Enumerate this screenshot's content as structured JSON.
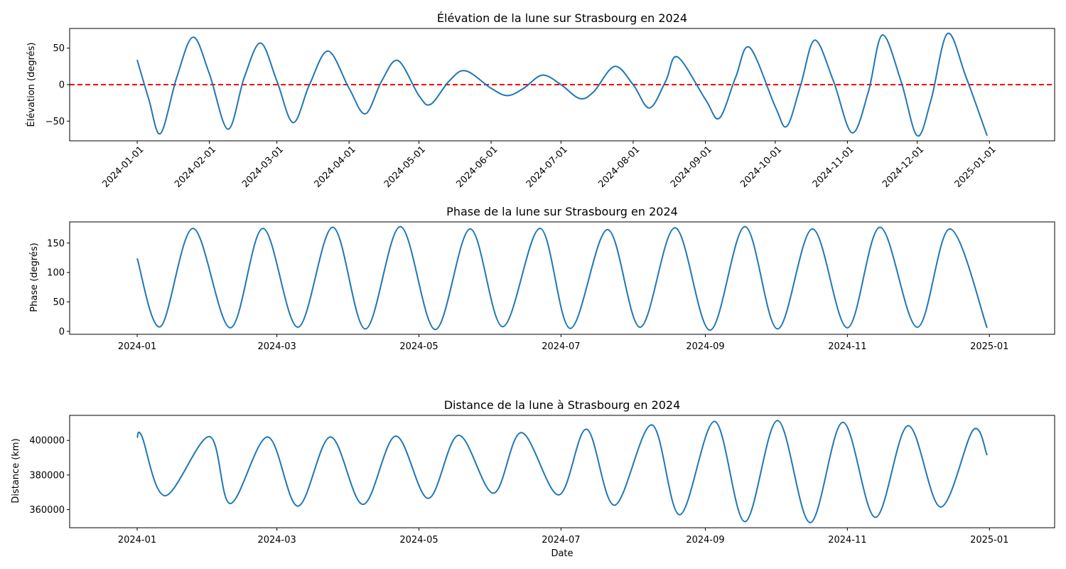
{
  "chart_data": [
    {
      "type": "line",
      "title": "Élévation de la lune sur Strasbourg en 2024",
      "xlabel": "",
      "ylabel": "Élévation (degrés)",
      "ylim": [
        -77,
        77
      ],
      "xlim": [
        "2023-12-03",
        "2025-01-29"
      ],
      "grid": false,
      "x_tick_labels": [
        "2024-01-01",
        "2024-02-01",
        "2024-03-01",
        "2024-04-01",
        "2024-05-01",
        "2024-06-01",
        "2024-07-01",
        "2024-08-01",
        "2024-09-01",
        "2024-10-01",
        "2024-11-01",
        "2024-12-01",
        "2025-01-01"
      ],
      "x_tick_rotation": 45,
      "y_ticks": [
        -50,
        0,
        50
      ],
      "y_tick_labels": [
        "−50",
        "0",
        "50"
      ],
      "reference_line": {
        "y": 0,
        "color": "#ff0000",
        "style": "dashed"
      },
      "series": [
        {
          "color": "#1f77b4",
          "points": [
            [
              "2024-01-01",
              34
            ],
            [
              "2024-01-06",
              -20
            ],
            [
              "2024-01-11",
              -67
            ],
            [
              "2024-01-18",
              10
            ],
            [
              "2024-01-25",
              65
            ],
            [
              "2024-02-01",
              15
            ],
            [
              "2024-02-09",
              -61
            ],
            [
              "2024-02-16",
              10
            ],
            [
              "2024-02-23",
              57
            ],
            [
              "2024-03-01",
              5
            ],
            [
              "2024-03-08",
              -52
            ],
            [
              "2024-03-15",
              0
            ],
            [
              "2024-03-23",
              46
            ],
            [
              "2024-04-01",
              -5
            ],
            [
              "2024-04-08",
              -40
            ],
            [
              "2024-04-15",
              5
            ],
            [
              "2024-04-22",
              33
            ],
            [
              "2024-05-01",
              -15
            ],
            [
              "2024-05-06",
              -27
            ],
            [
              "2024-05-14",
              5
            ],
            [
              "2024-05-21",
              19
            ],
            [
              "2024-06-01",
              -5
            ],
            [
              "2024-06-08",
              -15
            ],
            [
              "2024-06-15",
              -5
            ],
            [
              "2024-06-23",
              13
            ],
            [
              "2024-07-01",
              0
            ],
            [
              "2024-07-09",
              -19
            ],
            [
              "2024-07-15",
              -10
            ],
            [
              "2024-07-24",
              25
            ],
            [
              "2024-08-01",
              0
            ],
            [
              "2024-08-08",
              -32
            ],
            [
              "2024-08-15",
              5
            ],
            [
              "2024-08-20",
              38
            ],
            [
              "2024-09-01",
              -20
            ],
            [
              "2024-09-07",
              -46
            ],
            [
              "2024-09-14",
              10
            ],
            [
              "2024-09-20",
              51
            ],
            [
              "2024-10-01",
              -30
            ],
            [
              "2024-10-06",
              -57
            ],
            [
              "2024-10-12",
              0
            ],
            [
              "2024-10-18",
              61
            ],
            [
              "2024-10-26",
              5
            ],
            [
              "2024-11-03",
              -66
            ],
            [
              "2024-11-10",
              -10
            ],
            [
              "2024-11-16",
              68
            ],
            [
              "2024-11-24",
              5
            ],
            [
              "2024-12-01",
              -70
            ],
            [
              "2024-12-07",
              -20
            ],
            [
              "2024-12-14",
              70
            ],
            [
              "2024-12-22",
              10
            ],
            [
              "2024-12-31",
              -70
            ]
          ]
        }
      ]
    },
    {
      "type": "line",
      "title": "Phase de la lune sur Strasbourg en 2024",
      "xlabel": "",
      "ylabel": "Phase (degrés)",
      "ylim": [
        -5,
        186
      ],
      "xlim": [
        "2023-12-03",
        "2025-01-29"
      ],
      "grid": false,
      "x_tick_labels": [
        "2024-01",
        "2024-03",
        "2024-05",
        "2024-07",
        "2024-09",
        "2024-11",
        "2025-01"
      ],
      "x_tick_rotation": 0,
      "y_ticks": [
        0,
        50,
        100,
        150
      ],
      "y_tick_labels": [
        "0",
        "50",
        "100",
        "150"
      ],
      "series": [
        {
          "color": "#1f77b4",
          "points": [
            [
              "2024-01-01",
              124
            ],
            [
              "2024-01-11",
              8
            ],
            [
              "2024-01-25",
              175
            ],
            [
              "2024-02-10",
              6
            ],
            [
              "2024-02-24",
              175
            ],
            [
              "2024-03-10",
              7
            ],
            [
              "2024-03-25",
              177
            ],
            [
              "2024-04-08",
              4
            ],
            [
              "2024-04-23",
              178
            ],
            [
              "2024-05-08",
              3
            ],
            [
              "2024-05-23",
              174
            ],
            [
              "2024-06-06",
              8
            ],
            [
              "2024-06-22",
              175
            ],
            [
              "2024-07-05",
              5
            ],
            [
              "2024-07-21",
              173
            ],
            [
              "2024-08-04",
              7
            ],
            [
              "2024-08-19",
              176
            ],
            [
              "2024-09-03",
              2
            ],
            [
              "2024-09-18",
              178
            ],
            [
              "2024-10-02",
              4
            ],
            [
              "2024-10-17",
              174
            ],
            [
              "2024-11-01",
              6
            ],
            [
              "2024-11-15",
              177
            ],
            [
              "2024-12-01",
              7
            ],
            [
              "2024-12-15",
              174
            ],
            [
              "2024-12-31",
              6
            ]
          ]
        }
      ]
    },
    {
      "type": "line",
      "title": "Distance de la lune à Strasbourg en 2024",
      "xlabel": "Date",
      "ylabel": "Distance (km)",
      "ylim": [
        349500,
        414500
      ],
      "xlim": [
        "2023-12-03",
        "2025-01-29"
      ],
      "grid": false,
      "x_tick_labels": [
        "2024-01",
        "2024-03",
        "2024-05",
        "2024-07",
        "2024-09",
        "2024-11",
        "2025-01"
      ],
      "x_tick_rotation": 0,
      "y_ticks": [
        360000,
        380000,
        400000
      ],
      "y_tick_labels": [
        "360000",
        "380000",
        "400000"
      ],
      "series": [
        {
          "color": "#1f77b4",
          "points": [
            [
              "2024-01-01",
              401500
            ],
            [
              "2024-01-03",
              402500
            ],
            [
              "2024-01-13",
              368000
            ],
            [
              "2024-02-01",
              402200
            ],
            [
              "2024-02-10",
              363500
            ],
            [
              "2024-02-26",
              402000
            ],
            [
              "2024-03-10",
              362000
            ],
            [
              "2024-03-24",
              402000
            ],
            [
              "2024-04-07",
              363000
            ],
            [
              "2024-04-21",
              402500
            ],
            [
              "2024-05-05",
              366500
            ],
            [
              "2024-05-18",
              403000
            ],
            [
              "2024-06-02",
              369500
            ],
            [
              "2024-06-14",
              404500
            ],
            [
              "2024-06-30",
              368500
            ],
            [
              "2024-07-12",
              406500
            ],
            [
              "2024-07-24",
              362500
            ],
            [
              "2024-08-09",
              409000
            ],
            [
              "2024-08-21",
              357000
            ],
            [
              "2024-09-05",
              411000
            ],
            [
              "2024-09-18",
              353000
            ],
            [
              "2024-10-02",
              411500
            ],
            [
              "2024-10-16",
              352500
            ],
            [
              "2024-10-30",
              410500
            ],
            [
              "2024-11-13",
              355500
            ],
            [
              "2024-11-27",
              408500
            ],
            [
              "2024-12-11",
              361500
            ],
            [
              "2024-12-25",
              406000
            ],
            [
              "2024-12-31",
              391500
            ]
          ]
        }
      ]
    }
  ]
}
